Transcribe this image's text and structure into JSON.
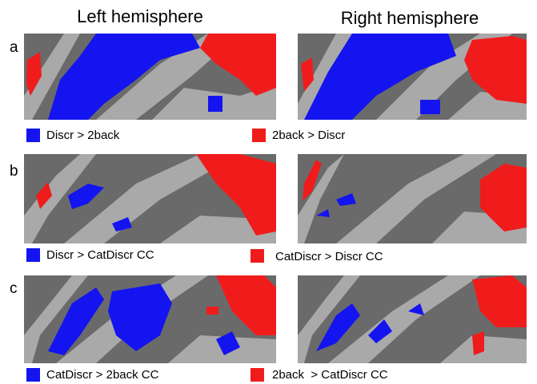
{
  "header": {
    "columns": [
      "Left hemisphere",
      "Right hemisphere"
    ]
  },
  "rows": [
    {
      "label": "a",
      "legend": [
        "Discr > 2back",
        "2back > Discr"
      ]
    },
    {
      "label": "b",
      "legend": [
        "Discr > CatDiscr CC",
        "CatDiscr > Discr CC"
      ]
    },
    {
      "label": "c",
      "legend": [
        "CatDiscr > 2back CC",
        "2back  > CatDiscr CC"
      ]
    }
  ]
}
